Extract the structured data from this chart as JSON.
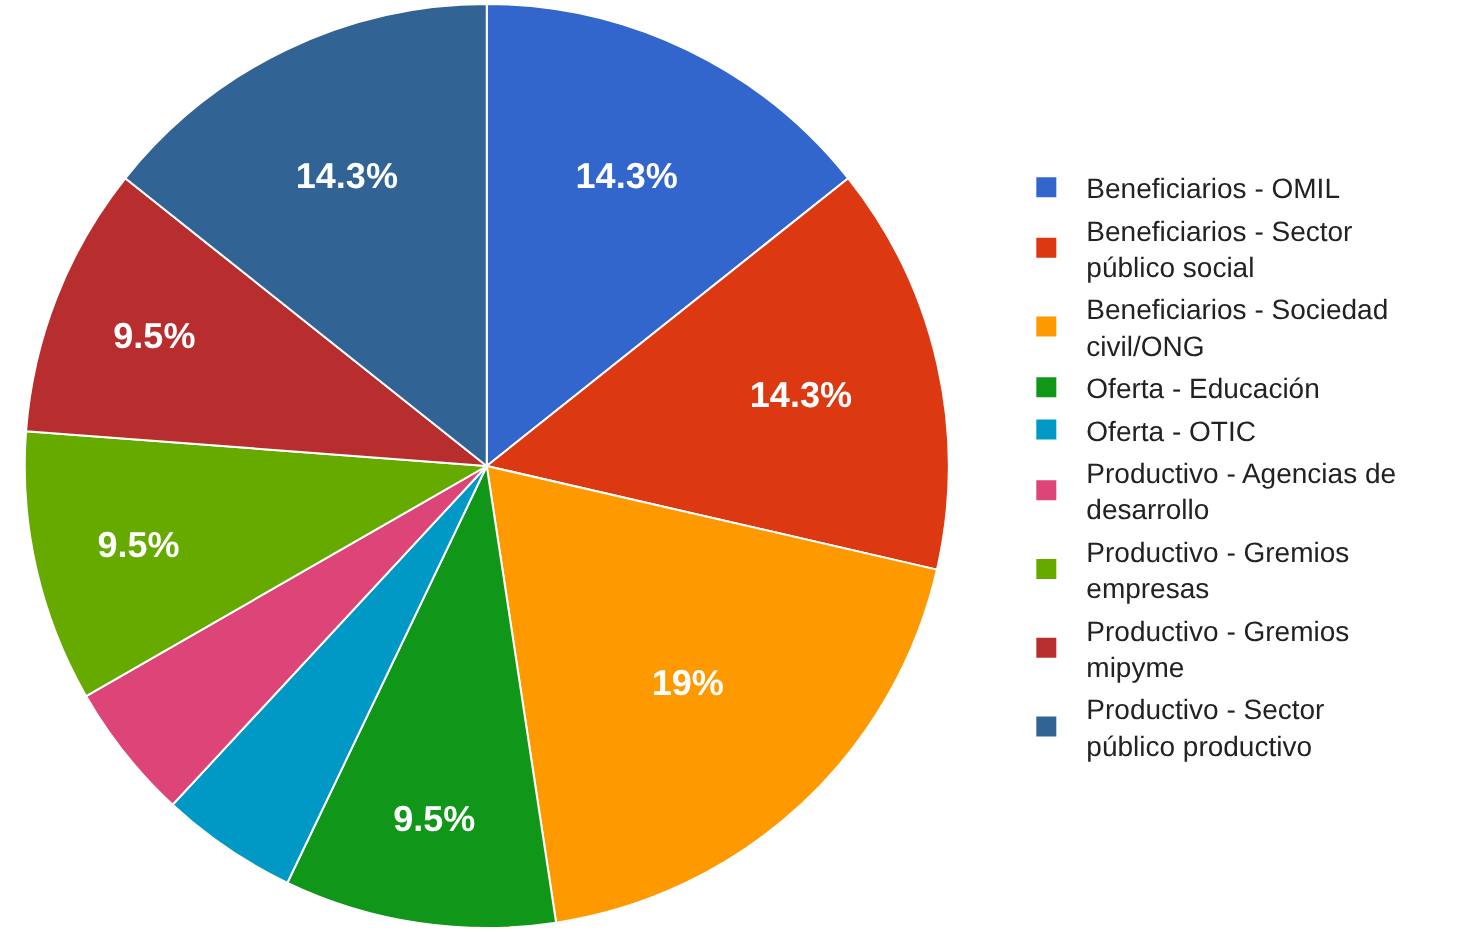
{
  "chart_data": {
    "type": "pie",
    "categories": [
      "Beneficiarios - OMIL",
      "Beneficiarios - Sector público social",
      "Beneficiarios - Sociedad civil/ONG",
      "Oferta - Educación",
      "Oferta - OTIC",
      "Productivo - Agencias de desarrollo",
      "Productivo - Gremios empresas",
      "Productivo - Gremios mipyme",
      "Productivo - Sector público productivo"
    ],
    "values": [
      14.3,
      14.3,
      19,
      9.5,
      4.8,
      4.8,
      9.5,
      9.5,
      14.3
    ],
    "value_labels": [
      "14.3%",
      "14.3%",
      "19%",
      "9.5%",
      null,
      null,
      "9.5%",
      "9.5%",
      "14.3%"
    ],
    "colors": [
      "#3366cc",
      "#dc3912",
      "#ff9900",
      "#109618",
      "#0099c6",
      "#dd4477",
      "#66aa00",
      "#b82e2e",
      "#316395"
    ],
    "legend": "right"
  }
}
